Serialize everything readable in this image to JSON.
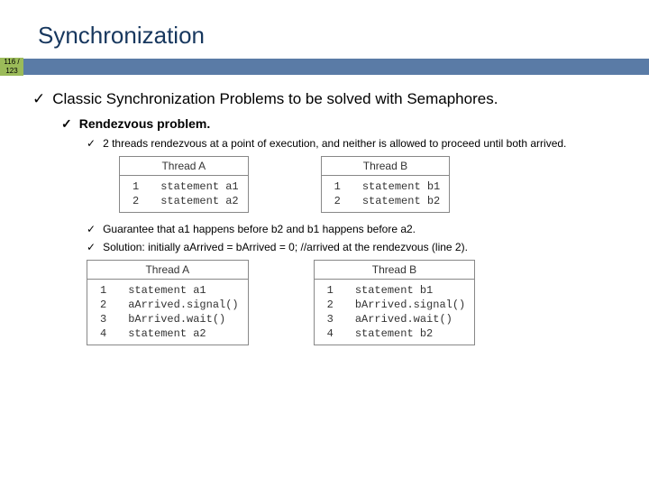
{
  "title": "Synchronization",
  "page_badge": {
    "top": "116 /",
    "bot": "123"
  },
  "bullets": {
    "l1": "Classic Synchronization Problems to be solved with Semaphores.",
    "l2": "Rendezvous problem.",
    "l3a": "2 threads rendezvous at a point of execution, and neither is allowed to proceed until both arrived.",
    "l3b": "Guarantee that a1 happens before b2 and b1 happens before a2.",
    "l3c": "Solution: initially aArrived = bArrived = 0; //arrived at the rendezvous (line 2)."
  },
  "table1": {
    "a_header": "Thread A",
    "b_header": "Thread B",
    "a_rows": [
      {
        "ln": "1",
        "code": "statement a1"
      },
      {
        "ln": "2",
        "code": "statement a2"
      }
    ],
    "b_rows": [
      {
        "ln": "1",
        "code": "statement b1"
      },
      {
        "ln": "2",
        "code": "statement b2"
      }
    ]
  },
  "table2": {
    "a_header": "Thread A",
    "b_header": "Thread B",
    "a_rows": [
      {
        "ln": "1",
        "code": "statement a1"
      },
      {
        "ln": "2",
        "code": "aArrived.signal()"
      },
      {
        "ln": "3",
        "code": "bArrived.wait()"
      },
      {
        "ln": "4",
        "code": "statement a2"
      }
    ],
    "b_rows": [
      {
        "ln": "1",
        "code": "statement b1"
      },
      {
        "ln": "2",
        "code": "bArrived.signal()"
      },
      {
        "ln": "3",
        "code": "aArrived.wait()"
      },
      {
        "ln": "4",
        "code": "statement b2"
      }
    ]
  },
  "colors": {
    "title": "#17375e",
    "accent": "#5a7ba6",
    "badge": "#9bbb59",
    "border": "#888888",
    "bg": "#ffffff"
  }
}
